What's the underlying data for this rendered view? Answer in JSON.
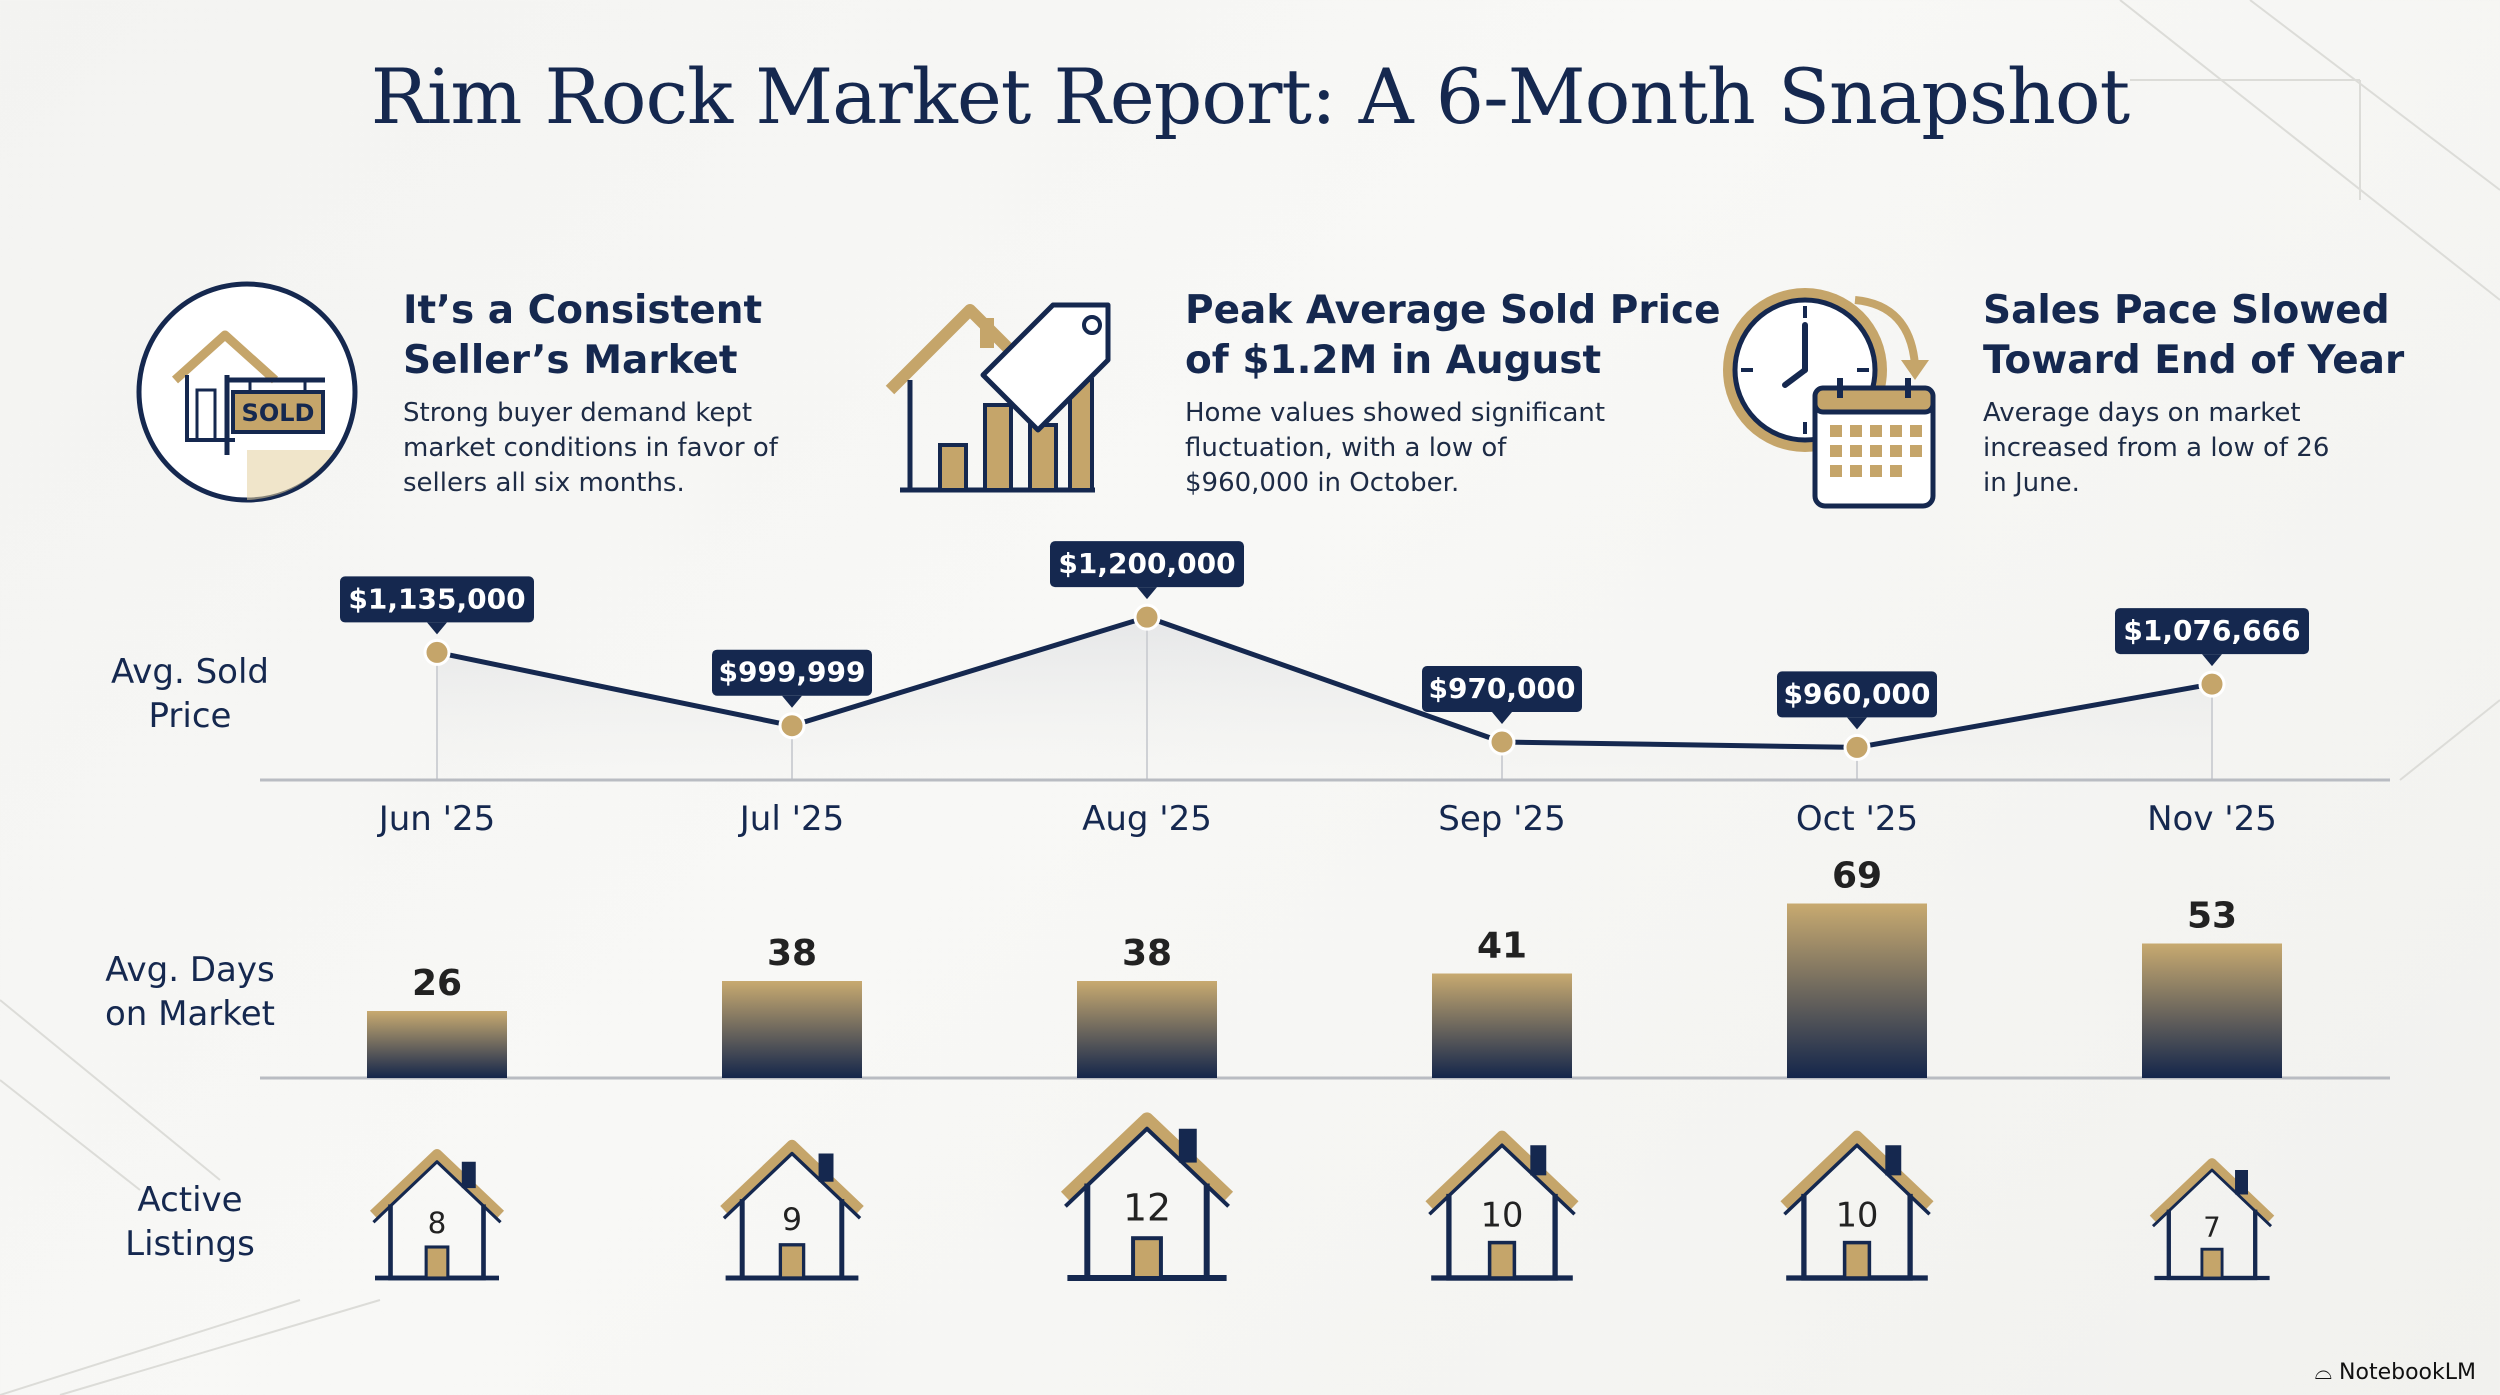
{
  "title": "Rim Rock Market Report: A 6-Month Snapshot",
  "cards": [
    {
      "title_line1": "It’s a Consistent",
      "title_line2": "Seller’s Market",
      "text_line1": "Strong buyer demand kept",
      "text_line2": "market conditions in favor of",
      "text_line3": "sellers all six months.",
      "icon": "sold-sign-house-icon",
      "sign_text": "SOLD"
    },
    {
      "title_line1": "Peak Average Sold Price",
      "title_line2": "of $1.2M in August",
      "text_line1": "Home values showed significant",
      "text_line2": "fluctuation, with a low of",
      "text_line3": "$960,000 in October.",
      "icon": "house-price-tag-chart-icon"
    },
    {
      "title_line1": "Sales Pace Slowed",
      "title_line2": "Toward End of Year",
      "text_line1": "Average days on market",
      "text_line2": "increased from a low of 26",
      "text_line3": "in June.",
      "icon": "clock-calendar-icon"
    }
  ],
  "row_labels": {
    "price_line1": "Avg. Sold",
    "price_line2": "Price",
    "days_line1": "Avg. Days",
    "days_line2": "on Market",
    "listings_line1": "Active",
    "listings_line2": "Listings"
  },
  "colors": {
    "navy": "#15284f",
    "gold": "#c5a56a",
    "gold_light": "#d8bd84",
    "axis": "#b9bcc2"
  },
  "chart_data": [
    {
      "type": "line",
      "categories": [
        "Jun '25",
        "Jul '25",
        "Aug '25",
        "Sep '25",
        "Oct '25",
        "Nov '25"
      ],
      "values": [
        1135000,
        999999,
        1200000,
        970000,
        960000,
        1076666
      ],
      "data_labels": [
        "$1,135,000",
        "$999,999",
        "$1,200,000",
        "$970,000",
        "$960,000",
        "$1,076,666"
      ],
      "ylabel": "Avg. Sold Price"
    },
    {
      "type": "bar",
      "categories": [
        "Jun '25",
        "Jul '25",
        "Aug '25",
        "Sep '25",
        "Oct '25",
        "Nov '25"
      ],
      "values": [
        26,
        38,
        38,
        41,
        69,
        53
      ],
      "ylabel": "Avg. Days on Market"
    },
    {
      "type": "table",
      "categories": [
        "Jun '25",
        "Jul '25",
        "Aug '25",
        "Sep '25",
        "Oct '25",
        "Nov '25"
      ],
      "values": [
        8,
        9,
        12,
        10,
        10,
        7
      ],
      "ylabel": "Active Listings"
    }
  ],
  "watermark": "NotebookLM"
}
